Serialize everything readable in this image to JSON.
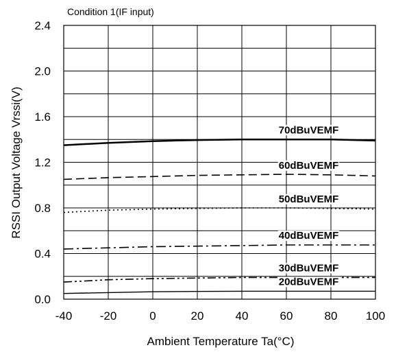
{
  "chart_data": {
    "type": "line",
    "title": "",
    "annotation": "Condition 1(IF input)",
    "xlabel": "Ambient Temperature Ta(°C)",
    "ylabel": "RSSI Output Voltage Vrssi(V)",
    "xlim": [
      -40,
      100
    ],
    "ylim": [
      0.0,
      2.4
    ],
    "x_ticks": [
      "-40",
      "-20",
      "0",
      "20",
      "40",
      "60",
      "80",
      "100"
    ],
    "y_ticks": [
      "0.0",
      "0.4",
      "0.8",
      "1.2",
      "1.6",
      "2.0",
      "2.4"
    ],
    "grid": true,
    "x": [
      -40,
      -20,
      0,
      20,
      40,
      60,
      80,
      100
    ],
    "series": [
      {
        "name": "70dBuVEMF",
        "style": "solid",
        "width": 2.5,
        "values": [
          1.35,
          1.37,
          1.385,
          1.395,
          1.4,
          1.4,
          1.4,
          1.39
        ]
      },
      {
        "name": "60dBuVEMF",
        "style": "dashed",
        "width": 1.6,
        "values": [
          1.05,
          1.065,
          1.075,
          1.085,
          1.09,
          1.095,
          1.09,
          1.08
        ]
      },
      {
        "name": "50dBuVEMF",
        "style": "dotted",
        "width": 1.6,
        "values": [
          0.76,
          0.78,
          0.79,
          0.795,
          0.8,
          0.8,
          0.795,
          0.79
        ]
      },
      {
        "name": "40dBuVEMF",
        "style": "dashdot",
        "width": 1.6,
        "values": [
          0.44,
          0.45,
          0.46,
          0.465,
          0.47,
          0.475,
          0.475,
          0.475
        ]
      },
      {
        "name": "30dBuVEMF",
        "style": "dashdotdot",
        "width": 1.6,
        "values": [
          0.15,
          0.17,
          0.18,
          0.185,
          0.19,
          0.19,
          0.19,
          0.19
        ]
      },
      {
        "name": "20dBuVEMF",
        "style": "solid",
        "width": 1.4,
        "values": [
          0.05,
          0.058,
          0.065,
          0.068,
          0.07,
          0.07,
          0.07,
          0.07
        ]
      }
    ]
  }
}
